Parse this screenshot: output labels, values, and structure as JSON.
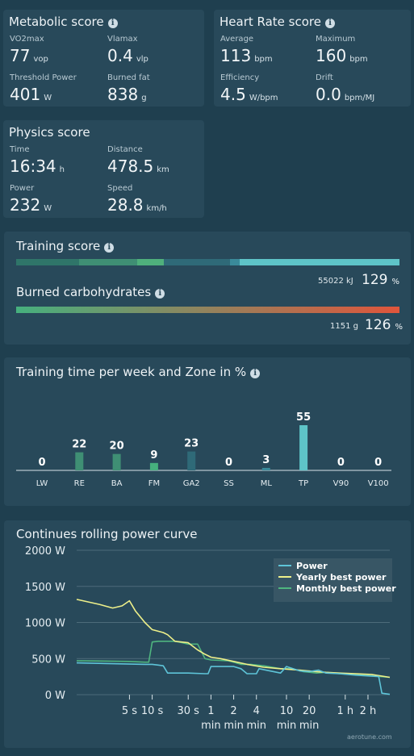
{
  "metabolic": {
    "title": "Metabolic score",
    "metrics": [
      {
        "label": "VO2max",
        "value": "77",
        "unit": "vop"
      },
      {
        "label": "Vlamax",
        "value": "0.4",
        "unit": "vlp"
      },
      {
        "label": "Threshold Power",
        "value": "401",
        "unit": "W"
      },
      {
        "label": "Burned fat",
        "value": "838",
        "unit": "g"
      }
    ]
  },
  "heart": {
    "title": "Heart Rate score",
    "metrics": [
      {
        "label": "Average",
        "value": "113",
        "unit": "bpm"
      },
      {
        "label": "Maximum",
        "value": "160",
        "unit": "bpm"
      },
      {
        "label": "Efficiency",
        "value": "4.5",
        "unit": "W/bpm"
      },
      {
        "label": "Drift",
        "value": "0.0",
        "unit": "bpm/MJ"
      }
    ]
  },
  "physics": {
    "title": "Physics score",
    "metrics": [
      {
        "label": "Time",
        "value": "16:34",
        "unit": "h"
      },
      {
        "label": "Distance",
        "value": "478.5",
        "unit": "km"
      },
      {
        "label": "Power",
        "value": "232",
        "unit": "W"
      },
      {
        "label": "Speed",
        "value": "28.8",
        "unit": "km/h"
      }
    ]
  },
  "training": {
    "title": "Training score",
    "energy": "55022 kJ",
    "score": "129",
    "score_unit": "%",
    "colors": [
      "#2f7569",
      "#3f8f74",
      "#4fb07c",
      "#2f6a78",
      "#3a8a9a",
      "#5ec4c8"
    ]
  },
  "carbs": {
    "title": "Burned carbohydrates",
    "amount": "1151 g",
    "score": "126",
    "score_unit": "%",
    "gradient_from": "#46b07e",
    "gradient_to": "#e0553b"
  },
  "zones": {
    "title": "Training time per week and Zone in %",
    "bar_color": "#3f8f74",
    "highlight_color": "#5ec4c8",
    "chart_data": {
      "type": "bar",
      "categories": [
        "LW",
        "RE",
        "BA",
        "FM",
        "GA2",
        "SS",
        "ML",
        "TP",
        "V90",
        "V100"
      ],
      "values": [
        0,
        22,
        20,
        9,
        23,
        0,
        3,
        55,
        0,
        0
      ],
      "colors": [
        "#3f8f74",
        "#3f8f74",
        "#3f8f74",
        "#46b07e",
        "#2f6a78",
        "#3a7a8a",
        "#3a8a9a",
        "#5ec4c8",
        "#5ec4c8",
        "#5ec4c8"
      ]
    }
  },
  "power": {
    "title": "Continues rolling power curve",
    "watermark": "aerotune.com",
    "chart_data": {
      "type": "line",
      "y_ticks": [
        "0 W",
        "500 W",
        "1000 W",
        "1500 W",
        "2000 W"
      ],
      "ylim": [
        0,
        2000
      ],
      "x_ticks": [
        {
          "s": 5,
          "l1": "5 s",
          "l2": ""
        },
        {
          "s": 10,
          "l1": "10 s",
          "l2": ""
        },
        {
          "s": 30,
          "l1": "30 s",
          "l2": ""
        },
        {
          "s": 60,
          "l1": "1",
          "l2": "min"
        },
        {
          "s": 120,
          "l1": "2",
          "l2": "min"
        },
        {
          "s": 240,
          "l1": "4",
          "l2": "min"
        },
        {
          "s": 600,
          "l1": "10",
          "l2": "min"
        },
        {
          "s": 1200,
          "l1": "20",
          "l2": "min"
        },
        {
          "s": 3600,
          "l1": "1 h",
          "l2": ""
        },
        {
          "s": 7200,
          "l1": "2 h",
          "l2": ""
        }
      ],
      "legend": [
        "Power",
        "Yearly best power",
        "Monthly best power"
      ],
      "series": [
        {
          "name": "Power",
          "color": "#5ec4d8",
          "x": [
            1,
            8,
            10,
            12,
            14,
            16,
            20,
            30,
            50,
            55,
            60,
            120,
            150,
            180,
            240,
            260,
            500,
            600,
            900,
            1200,
            1600,
            2000,
            3000,
            5000,
            10000,
            11000,
            14000
          ],
          "y": [
            440,
            420,
            420,
            410,
            400,
            300,
            300,
            300,
            290,
            290,
            390,
            390,
            360,
            290,
            290,
            360,
            300,
            390,
            330,
            320,
            340,
            300,
            290,
            270,
            250,
            20,
            5
          ]
        },
        {
          "name": "Yearly best power",
          "color": "#eef08a",
          "x": [
            1,
            2,
            3,
            4,
            5,
            6,
            8,
            10,
            14,
            16,
            20,
            30,
            40,
            50,
            60,
            80,
            120,
            180,
            300,
            500,
            900,
            1500,
            2000,
            3000,
            5000,
            8000,
            14000
          ],
          "y": [
            1320,
            1250,
            1200,
            1230,
            1300,
            1160,
            1000,
            900,
            860,
            830,
            740,
            720,
            620,
            560,
            520,
            500,
            460,
            420,
            380,
            360,
            340,
            320,
            310,
            300,
            290,
            280,
            240
          ]
        },
        {
          "name": "Monthly best power",
          "color": "#4fb57f",
          "x": [
            1,
            5,
            8,
            9,
            10,
            12,
            20,
            25,
            30,
            40,
            50,
            60,
            100,
            120,
            150,
            200,
            300,
            500,
            700,
            1000,
            1500,
            2000,
            3000,
            5000,
            8000,
            14000
          ],
          "y": [
            470,
            460,
            450,
            450,
            730,
            740,
            740,
            720,
            700,
            700,
            500,
            480,
            470,
            450,
            420,
            420,
            400,
            360,
            360,
            320,
            300,
            310,
            290,
            280,
            260,
            240
          ]
        }
      ]
    }
  }
}
